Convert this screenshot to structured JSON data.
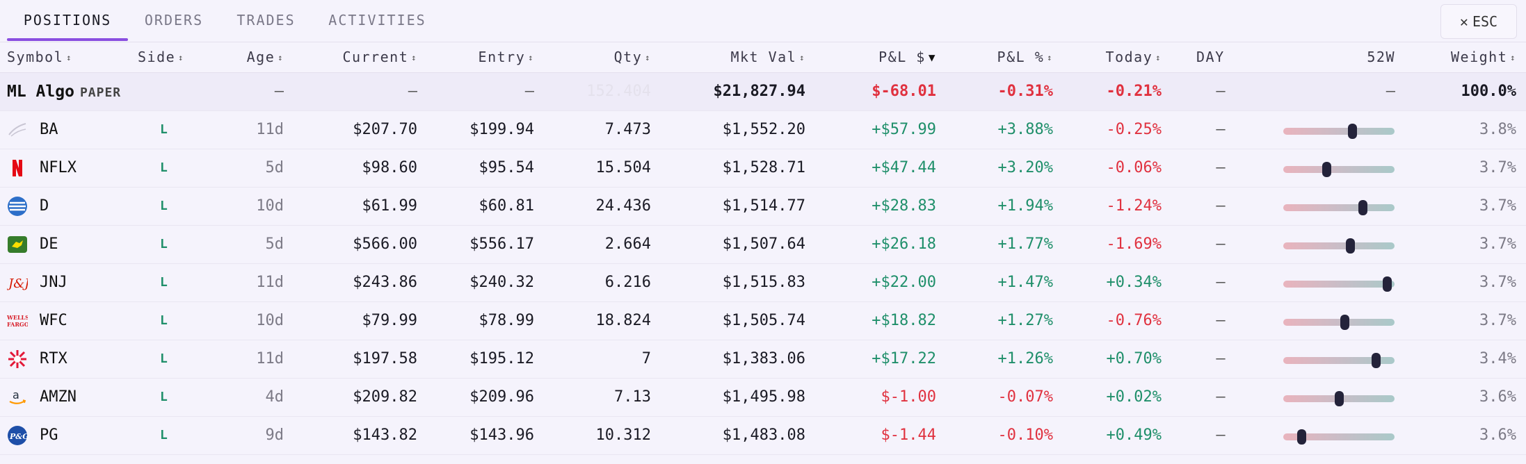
{
  "tabs": [
    {
      "label": "POSITIONS",
      "active": true
    },
    {
      "label": "ORDERS",
      "active": false
    },
    {
      "label": "TRADES",
      "active": false
    },
    {
      "label": "ACTIVITIES",
      "active": false
    }
  ],
  "esc_button": {
    "icon": "close-icon",
    "glyph": "✕",
    "label": "ESC"
  },
  "columns": {
    "symbol": "Symbol",
    "side": "Side",
    "age": "Age",
    "current": "Current",
    "entry": "Entry",
    "qty": "Qty",
    "mkt_val": "Mkt Val",
    "pnl_usd": "P&L $",
    "pnl_pct": "P&L %",
    "today": "Today",
    "day": "DAY",
    "w52": "52W",
    "weight": "Weight"
  },
  "sort_glyphs": {
    "unsorted": "↕",
    "active_desc": "▼"
  },
  "summary": {
    "name": "ML Algo",
    "badge": "PAPER",
    "side": "",
    "age": "—",
    "current": "—",
    "entry": "—",
    "qty": "152.404",
    "mkt_val": "$21,827.94",
    "pnl_usd": "$-68.01",
    "pnl_pct": "-0.31%",
    "today": "-0.21%",
    "day": "—",
    "w52": "—",
    "weight": "100.0%"
  },
  "positions": [
    {
      "ticker": "BA",
      "logo": "boeing-logo",
      "side": "L",
      "age": "11d",
      "current": "$207.70",
      "entry": "$199.94",
      "qty": "7.473",
      "mkt_val": "$1,552.20",
      "pnl_usd": "+$57.99",
      "pnl_pct": "+3.88%",
      "today": "-0.25%",
      "day": "—",
      "range_pct": 0.62,
      "weight": "3.8%"
    },
    {
      "ticker": "NFLX",
      "logo": "netflix-logo",
      "side": "L",
      "age": "5d",
      "current": "$98.60",
      "entry": "$95.54",
      "qty": "15.504",
      "mkt_val": "$1,528.71",
      "pnl_usd": "+$47.44",
      "pnl_pct": "+3.20%",
      "today": "-0.06%",
      "day": "—",
      "range_pct": 0.39,
      "weight": "3.7%"
    },
    {
      "ticker": "D",
      "logo": "dominion-logo",
      "side": "L",
      "age": "10d",
      "current": "$61.99",
      "entry": "$60.81",
      "qty": "24.436",
      "mkt_val": "$1,514.77",
      "pnl_usd": "+$28.83",
      "pnl_pct": "+1.94%",
      "today": "-1.24%",
      "day": "—",
      "range_pct": 0.71,
      "weight": "3.7%"
    },
    {
      "ticker": "DE",
      "logo": "john-deere-logo",
      "side": "L",
      "age": "5d",
      "current": "$566.00",
      "entry": "$556.17",
      "qty": "2.664",
      "mkt_val": "$1,507.64",
      "pnl_usd": "+$26.18",
      "pnl_pct": "+1.77%",
      "today": "-1.69%",
      "day": "—",
      "range_pct": 0.6,
      "weight": "3.7%"
    },
    {
      "ticker": "JNJ",
      "logo": "jnj-logo",
      "side": "L",
      "age": "11d",
      "current": "$243.86",
      "entry": "$240.32",
      "qty": "6.216",
      "mkt_val": "$1,515.83",
      "pnl_usd": "+$22.00",
      "pnl_pct": "+1.47%",
      "today": "+0.34%",
      "day": "—",
      "range_pct": 0.93,
      "weight": "3.7%"
    },
    {
      "ticker": "WFC",
      "logo": "wells-fargo-logo",
      "side": "L",
      "age": "10d",
      "current": "$79.99",
      "entry": "$78.99",
      "qty": "18.824",
      "mkt_val": "$1,505.74",
      "pnl_usd": "+$18.82",
      "pnl_pct": "+1.27%",
      "today": "-0.76%",
      "day": "—",
      "range_pct": 0.55,
      "weight": "3.7%"
    },
    {
      "ticker": "RTX",
      "logo": "rtx-logo",
      "side": "L",
      "age": "11d",
      "current": "$197.58",
      "entry": "$195.12",
      "qty": "7",
      "mkt_val": "$1,383.06",
      "pnl_usd": "+$17.22",
      "pnl_pct": "+1.26%",
      "today": "+0.70%",
      "day": "—",
      "range_pct": 0.83,
      "weight": "3.4%"
    },
    {
      "ticker": "AMZN",
      "logo": "amazon-logo",
      "side": "L",
      "age": "4d",
      "current": "$209.82",
      "entry": "$209.96",
      "qty": "7.13",
      "mkt_val": "$1,495.98",
      "pnl_usd": "$-1.00",
      "pnl_pct": "-0.07%",
      "today": "+0.02%",
      "day": "—",
      "range_pct": 0.5,
      "weight": "3.6%"
    },
    {
      "ticker": "PG",
      "logo": "procter-gamble-logo",
      "side": "L",
      "age": "9d",
      "current": "$143.82",
      "entry": "$143.96",
      "qty": "10.312",
      "mkt_val": "$1,483.08",
      "pnl_usd": "$-1.44",
      "pnl_pct": "-0.10%",
      "today": "+0.49%",
      "day": "—",
      "range_pct": 0.16,
      "weight": "3.6%"
    }
  ],
  "colors": {
    "accent": "#8a4ee0",
    "gain": "#1f8f6a",
    "loss": "#e0313f",
    "range_thumb": "#24233a"
  }
}
